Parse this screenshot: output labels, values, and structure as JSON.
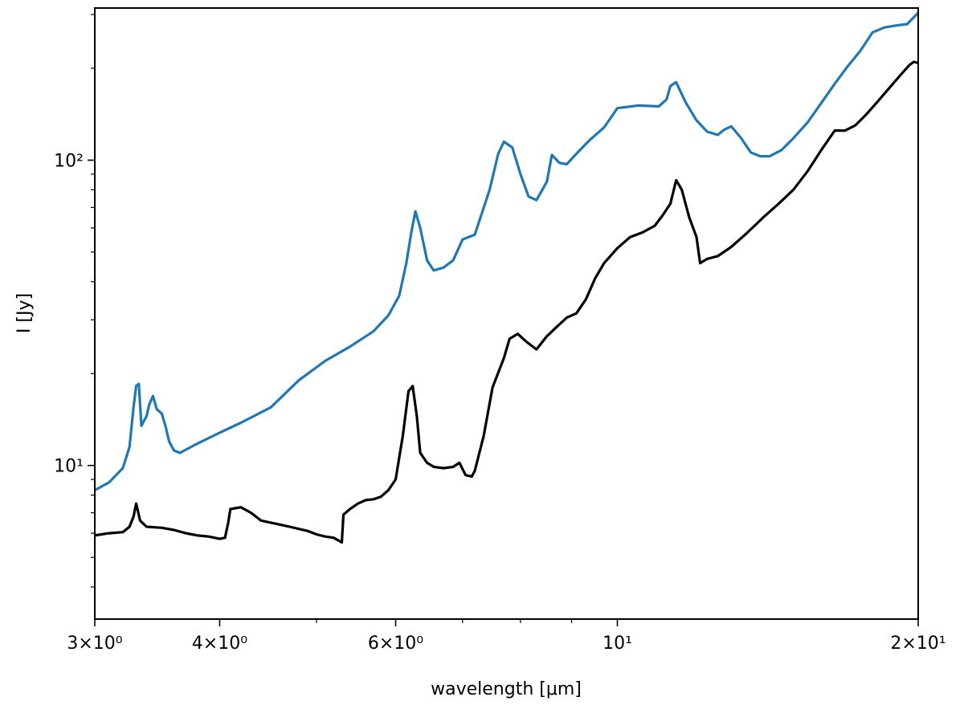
{
  "chart_data": {
    "type": "line",
    "title": "",
    "xlabel": "wavelength [μm]",
    "ylabel": "I [Jy]",
    "xscale": "log",
    "yscale": "log",
    "xlim": [
      3,
      20
    ],
    "ylim": [
      3.14,
      315
    ],
    "grid": false,
    "legend": "none",
    "x_major_ticks": [
      {
        "value": 3,
        "label": "3×10⁰"
      },
      {
        "value": 4,
        "label": "4×10⁰"
      },
      {
        "value": 6,
        "label": "6×10⁰"
      },
      {
        "value": 10,
        "label": "10¹"
      },
      {
        "value": 20,
        "label": "2×10¹"
      }
    ],
    "x_minor_ticks": [
      5,
      7,
      8,
      9
    ],
    "y_major_ticks": [
      {
        "value": 10,
        "label": "10¹"
      },
      {
        "value": 100,
        "label": "10²"
      }
    ],
    "y_minor_ticks": [
      4,
      5,
      6,
      7,
      8,
      9,
      20,
      30,
      40,
      50,
      60,
      70,
      80,
      90,
      200,
      300
    ],
    "series": [
      {
        "color": "#1f77b4",
        "x": [
          3.0,
          3.1,
          3.2,
          3.25,
          3.28,
          3.3,
          3.32,
          3.34,
          3.38,
          3.4,
          3.43,
          3.46,
          3.5,
          3.53,
          3.56,
          3.6,
          3.65,
          3.8,
          4.0,
          4.2,
          4.5,
          4.8,
          5.1,
          5.4,
          5.7,
          5.9,
          6.05,
          6.15,
          6.22,
          6.28,
          6.35,
          6.45,
          6.55,
          6.7,
          6.85,
          7.0,
          7.2,
          7.45,
          7.6,
          7.7,
          7.85,
          8.0,
          8.15,
          8.3,
          8.5,
          8.6,
          8.75,
          8.9,
          9.1,
          9.4,
          9.7,
          10.0,
          10.5,
          11.0,
          11.2,
          11.3,
          11.45,
          11.7,
          12.0,
          12.3,
          12.6,
          12.8,
          13.0,
          13.3,
          13.6,
          13.9,
          14.2,
          14.6,
          15.0,
          15.5,
          16.0,
          16.5,
          17.0,
          17.5,
          18.0,
          18.5,
          19.0,
          19.5,
          20.0
        ],
        "y": [
          8.3,
          8.8,
          9.8,
          11.5,
          15.5,
          18.2,
          18.5,
          13.5,
          14.5,
          15.8,
          16.9,
          15.3,
          14.8,
          13.5,
          12.0,
          11.2,
          11.0,
          11.8,
          12.8,
          13.8,
          15.5,
          19.0,
          22.0,
          24.5,
          27.5,
          31.0,
          36.0,
          46.0,
          58.0,
          68.0,
          60.0,
          47.0,
          43.5,
          44.5,
          47.0,
          55.0,
          57.0,
          80.0,
          105.0,
          115.0,
          110.0,
          90.0,
          76.0,
          74.0,
          85.0,
          104.0,
          98.0,
          97.0,
          105.0,
          117.0,
          128.0,
          148.0,
          151.0,
          150.0,
          158.0,
          175.0,
          180.0,
          155.0,
          135.0,
          124.0,
          121.0,
          126.0,
          129.0,
          118.0,
          106.0,
          103.0,
          103.0,
          108.0,
          118.0,
          133.0,
          154.0,
          178.0,
          203.0,
          228.0,
          262.0,
          272.0,
          276.0,
          279.0,
          304.0
        ]
      },
      {
        "color": "#000000",
        "x": [
          3.0,
          3.1,
          3.2,
          3.25,
          3.28,
          3.3,
          3.33,
          3.38,
          3.5,
          3.6,
          3.7,
          3.8,
          3.9,
          4.0,
          4.05,
          4.08,
          4.1,
          4.2,
          4.3,
          4.4,
          4.5,
          4.6,
          4.7,
          4.8,
          4.9,
          5.0,
          5.1,
          5.2,
          5.3,
          5.32,
          5.4,
          5.5,
          5.6,
          5.7,
          5.8,
          5.9,
          6.0,
          6.1,
          6.18,
          6.24,
          6.3,
          6.35,
          6.45,
          6.55,
          6.7,
          6.85,
          6.95,
          7.05,
          7.15,
          7.2,
          7.35,
          7.5,
          7.7,
          7.8,
          7.95,
          8.1,
          8.3,
          8.5,
          8.7,
          8.9,
          9.1,
          9.3,
          9.5,
          9.7,
          10.0,
          10.3,
          10.6,
          10.9,
          11.1,
          11.3,
          11.45,
          11.6,
          11.8,
          12.0,
          12.1,
          12.3,
          12.6,
          13.0,
          13.5,
          14.0,
          14.5,
          15.0,
          15.5,
          16.0,
          16.5,
          16.9,
          17.3,
          17.7,
          18.2,
          18.7,
          19.2,
          19.6,
          19.8,
          20.0
        ],
        "y": [
          5.9,
          6.0,
          6.05,
          6.3,
          6.8,
          7.5,
          6.6,
          6.3,
          6.25,
          6.15,
          6.0,
          5.9,
          5.85,
          5.75,
          5.8,
          6.5,
          7.2,
          7.3,
          7.0,
          6.6,
          6.5,
          6.4,
          6.3,
          6.2,
          6.1,
          5.95,
          5.85,
          5.8,
          5.6,
          6.9,
          7.2,
          7.5,
          7.7,
          7.75,
          7.9,
          8.3,
          9.0,
          12.5,
          17.5,
          18.2,
          14.5,
          11.0,
          10.2,
          9.9,
          9.8,
          9.9,
          10.2,
          9.3,
          9.2,
          9.6,
          12.5,
          18.0,
          22.5,
          26.0,
          27.0,
          25.5,
          24.0,
          26.5,
          28.5,
          30.5,
          31.5,
          35.0,
          41.0,
          46.0,
          51.5,
          56.0,
          58.0,
          61.0,
          66.0,
          72.0,
          86.0,
          80.0,
          65.0,
          56.0,
          46.0,
          47.5,
          48.5,
          52.0,
          58.0,
          65.0,
          72.0,
          80.0,
          92.0,
          108.0,
          125.0,
          125.0,
          130.0,
          140.0,
          155.0,
          172.0,
          190.0,
          205.0,
          210.0,
          208.0
        ]
      }
    ]
  }
}
